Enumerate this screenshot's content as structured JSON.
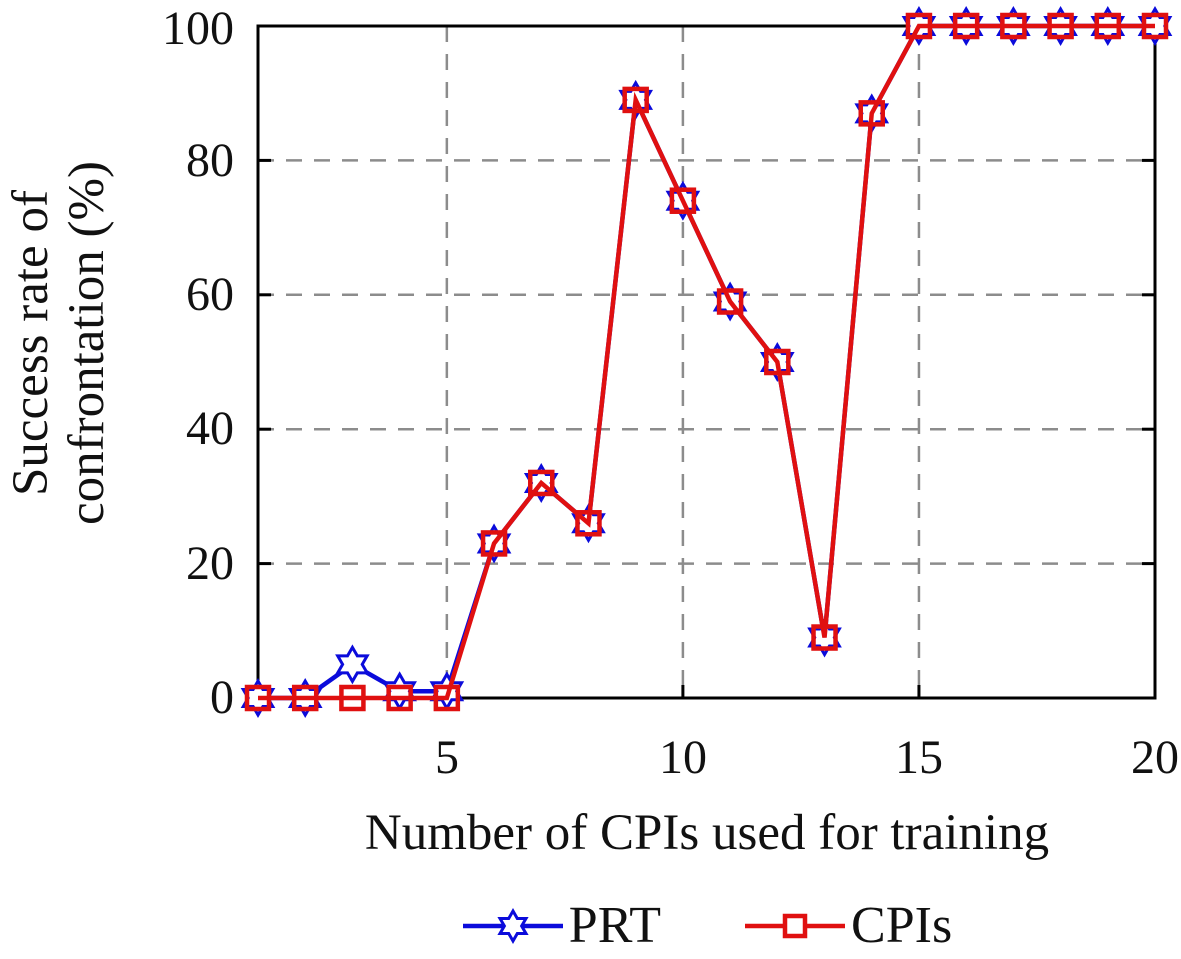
{
  "figure": {
    "background": "#ffffff"
  },
  "chart_data": {
    "type": "line",
    "title": "",
    "xlabel": "Number of CPIs used for training",
    "ylabel_line1": "Success rate of",
    "ylabel_line2": "confrontation (%)",
    "x": [
      1,
      2,
      3,
      4,
      5,
      6,
      7,
      8,
      9,
      10,
      11,
      12,
      13,
      14,
      15,
      16,
      17,
      18,
      19,
      20
    ],
    "series": [
      {
        "name": "PRT",
        "color": "#0b0bdb",
        "marker": "six-pointed-star",
        "values": [
          0,
          0,
          5,
          1,
          1,
          23,
          32,
          26,
          89,
          74,
          59,
          50,
          9,
          87,
          100,
          100,
          100,
          100,
          100,
          100
        ]
      },
      {
        "name": "CPIs",
        "color": "#e01010",
        "marker": "open-square",
        "values": [
          0,
          0,
          0,
          0,
          0,
          23,
          32,
          26,
          89,
          74,
          59,
          50,
          9,
          87,
          100,
          100,
          100,
          100,
          100,
          100
        ]
      }
    ],
    "xlim": [
      1,
      20
    ],
    "ylim": [
      0,
      100
    ],
    "xticks": [
      5,
      10,
      15,
      20
    ],
    "yticks": [
      0,
      20,
      40,
      60,
      80,
      100
    ],
    "grid": true,
    "grid_color": "#8c8c8c",
    "axis_color": "#000000",
    "legend_position": "bottom"
  }
}
